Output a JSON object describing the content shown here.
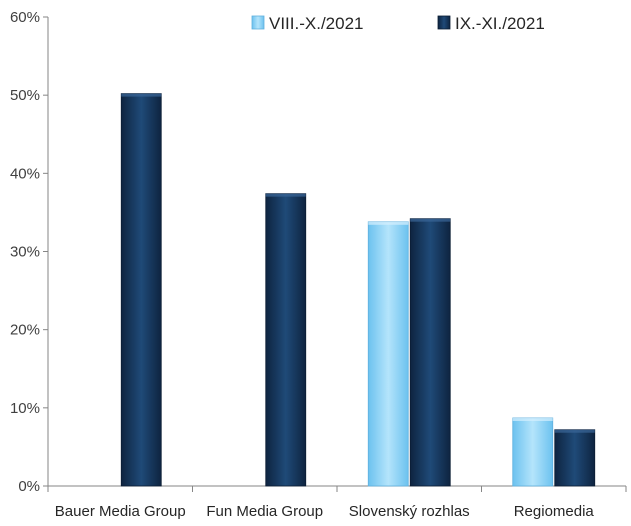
{
  "chart_data": {
    "type": "bar",
    "title": "",
    "xlabel": "",
    "ylabel": "",
    "categories": [
      "Bauer Media Group",
      "Fun Media Group",
      "Slovenský rozhlas",
      "Regiomedia"
    ],
    "series": [
      {
        "name": "VIII.-X./2021",
        "values": [
          null,
          null,
          0.338,
          0.087
        ],
        "color": "#8fd3f5"
      },
      {
        "name": "IX.-XI./2021",
        "values": [
          0.502,
          0.374,
          0.342,
          0.072
        ],
        "color": "#17375e"
      }
    ],
    "ylim": [
      0,
      0.6
    ],
    "yticks": [
      0,
      0.1,
      0.2,
      0.3,
      0.4,
      0.5,
      0.6
    ],
    "ytick_labels": [
      "0%",
      "10%",
      "20%",
      "30%",
      "40%",
      "50%",
      "60%"
    ],
    "grid": false,
    "legend_position": "top-right"
  }
}
